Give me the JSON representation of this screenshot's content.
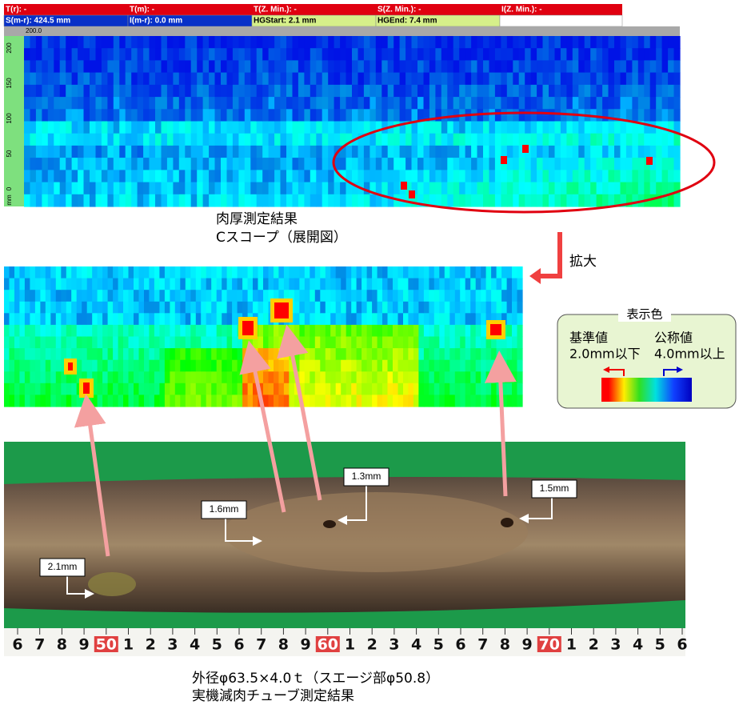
{
  "header": {
    "row1": [
      "T(r): -",
      "T(m): -",
      "T(Z. Min.): -",
      "S(Z. Min.): -",
      "I(Z. Min.): -"
    ],
    "row2": [
      "S(m-r): 424.5 mm",
      "I(m-r): 0.0 mm",
      "HGStart: 2.1 mm",
      "HGEnd: 7.4 mm"
    ]
  },
  "cscope": {
    "top_value": "200.0",
    "axis_labels": [
      "200",
      "150",
      "100",
      "50",
      "0"
    ],
    "unit": "mm",
    "caption": [
      "肉厚測定結果",
      "Cスコープ（展開図）"
    ]
  },
  "zoom_label": "拡大",
  "legend": {
    "title": "表示色",
    "reference": {
      "label": "基準値",
      "value": "2.0mm以下"
    },
    "nominal": {
      "label": "公称値",
      "value": "4.0mm以上"
    }
  },
  "photo": {
    "labels": [
      "1.3mm",
      "1.6mm",
      "1.5mm",
      "2.1mm"
    ],
    "ruler": [
      "6",
      "7",
      "8",
      "9",
      "50",
      "1",
      "2",
      "3",
      "4",
      "5",
      "6",
      "7",
      "8",
      "9",
      "60",
      "1",
      "2",
      "3",
      "4",
      "5",
      "6",
      "7",
      "8",
      "9",
      "70",
      "1",
      "2",
      "3",
      "4",
      "5",
      "6"
    ]
  },
  "caption": [
    "外径φ63.5×4.0ｔ（スエージ部φ50.8）",
    "実機減肉チューブ測定結果"
  ]
}
